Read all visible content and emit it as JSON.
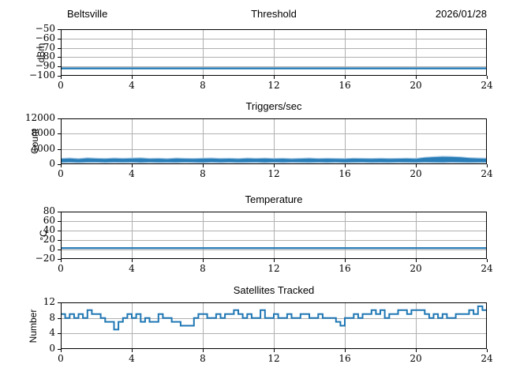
{
  "header": {
    "station": "Beltsville",
    "date": "2026/01/28"
  },
  "colors": {
    "line": "#1f77b4",
    "band": "#a9c9e4",
    "grid": "#b0b0b0",
    "spine": "#000000",
    "background": "#ffffff"
  },
  "chart_data": [
    {
      "type": "line",
      "title": "Threshold",
      "ylabel": "dBm",
      "xlabel": "",
      "xlim": [
        0,
        24
      ],
      "xticks": [
        0,
        4,
        8,
        12,
        16,
        20,
        24
      ],
      "ylim": [
        -100,
        -50
      ],
      "yticks": [
        -100,
        -90,
        -80,
        -70,
        -60,
        -50
      ],
      "grid": true,
      "series": {
        "constant": -92,
        "band": [
          -93.2,
          -90.9
        ]
      }
    },
    {
      "type": "noise-band",
      "title": "Triggers/sec",
      "ylabel": "Count",
      "xlabel": "",
      "xlim": [
        0,
        24
      ],
      "xticks": [
        0,
        4,
        8,
        12,
        16,
        20,
        24
      ],
      "ylim": [
        0,
        12000
      ],
      "yticks": [
        0,
        4000,
        8000,
        12000
      ],
      "grid": true,
      "series": {
        "x_step": 0.5,
        "min": [
          520,
          560,
          500,
          550,
          580,
          510,
          560,
          530,
          550,
          500,
          560,
          520,
          540,
          510,
          570,
          530,
          500,
          550,
          520,
          560,
          510,
          540,
          560,
          500,
          550,
          520,
          560,
          530,
          510,
          550,
          520,
          560,
          500,
          540,
          550,
          510,
          540,
          520,
          560,
          530,
          510,
          560,
          540,
          520,
          560,
          530,
          510,
          540,
          530
        ],
        "max": [
          1400,
          1500,
          1350,
          1550,
          1450,
          1380,
          1520,
          1420,
          1480,
          1560,
          1400,
          1450,
          1350,
          1500,
          1430,
          1380,
          1460,
          1520,
          1400,
          1440,
          1360,
          1500,
          1420,
          1480,
          1400,
          1450,
          1350,
          1430,
          1500,
          1380,
          1450,
          1400,
          1360,
          1470,
          1430,
          1390,
          1450,
          1380,
          1420,
          1460,
          1400,
          1700,
          1850,
          1950,
          1900,
          1800,
          1600,
          1500,
          1450
        ]
      }
    },
    {
      "type": "line",
      "title": "Temperature",
      "ylabel": "°C",
      "xlabel": "",
      "xlim": [
        0,
        24
      ],
      "xticks": [
        0,
        4,
        8,
        12,
        16,
        20,
        24
      ],
      "ylim": [
        -20,
        80
      ],
      "yticks": [
        -20,
        0,
        20,
        40,
        60,
        80
      ],
      "grid": true,
      "series": {
        "constant": 3,
        "band": [
          1.4,
          4.6
        ]
      }
    },
    {
      "type": "step",
      "title": "Satellites Tracked",
      "ylabel": "Number",
      "xlabel": "",
      "xlim": [
        0,
        24
      ],
      "xticks": [
        0,
        4,
        8,
        12,
        16,
        20,
        24
      ],
      "ylim": [
        0,
        12
      ],
      "yticks": [
        0,
        4,
        8,
        12
      ],
      "grid": true,
      "series": {
        "x_step": 0.25,
        "y": [
          9,
          8,
          9,
          8,
          9,
          8,
          10,
          9,
          9,
          8,
          7,
          7,
          5,
          7,
          8,
          9,
          8,
          9,
          7,
          8,
          7,
          7,
          9,
          8,
          8,
          7,
          7,
          6,
          6,
          6,
          8,
          9,
          9,
          8,
          8,
          9,
          8,
          9,
          9,
          10,
          9,
          8,
          9,
          8,
          8,
          10,
          8,
          8,
          9,
          8,
          8,
          9,
          8,
          8,
          9,
          9,
          8,
          8,
          9,
          8,
          8,
          8,
          7,
          6,
          8,
          8,
          9,
          8,
          9,
          9,
          10,
          9,
          10,
          8,
          9,
          9,
          10,
          10,
          9,
          10,
          10,
          10,
          9,
          8,
          9,
          8,
          9,
          8,
          8,
          9,
          9,
          9,
          10,
          9,
          11,
          10,
          9
        ]
      }
    }
  ]
}
